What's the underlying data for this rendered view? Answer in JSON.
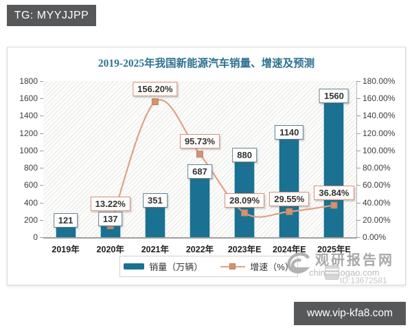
{
  "top_banner": {
    "text": "TG: MYYJJPP"
  },
  "bottom_banner": {
    "text": "www.vip-kfa8.com"
  },
  "watermark": {
    "site_name": "观研报告网",
    "site_url": "chinabaogao.com",
    "doc_id": "ID:13672581"
  },
  "chart_data": {
    "type": "bar",
    "combo": "bar+line",
    "title": "2019-2025年我国新能源汽车销量、增速及预测",
    "categories": [
      "2019年",
      "2020年",
      "2021年",
      "2022年",
      "2023年E",
      "2024年E",
      "2025年E"
    ],
    "series": [
      {
        "name": "销量（万辆）",
        "type": "bar",
        "axis": "left",
        "color": "#1b7191",
        "values": [
          121,
          137,
          351,
          687,
          880,
          1140,
          1560
        ],
        "data_labels": [
          "121",
          "137",
          "351",
          "687",
          "880",
          "1140",
          "1560"
        ]
      },
      {
        "name": "增速（%）",
        "type": "line",
        "axis": "right",
        "color": "#dfa183",
        "marker_color": "#d9906b",
        "values": [
          null,
          13.22,
          156.2,
          95.73,
          28.09,
          29.55,
          36.84
        ],
        "data_labels": [
          null,
          "13.22%",
          "156.20%",
          "95.73%",
          "28.09%",
          "29.55%",
          "36.84%"
        ]
      }
    ],
    "left_axis": {
      "min": 0,
      "max": 1800,
      "step": 200,
      "tick_labels": [
        "0",
        "200",
        "400",
        "600",
        "800",
        "1000",
        "1200",
        "1400",
        "1600",
        "1800"
      ]
    },
    "right_axis": {
      "min": 0,
      "max": 180,
      "step": 20,
      "tick_labels": [
        "0.00%",
        "20.00%",
        "40.00%",
        "60.00%",
        "80.00%",
        "100.00%",
        "120.00%",
        "140.00%",
        "160.00%",
        "180.00%"
      ]
    },
    "legend": {
      "position": "bottom",
      "items": [
        "销量（万辆）",
        "增速（%）"
      ]
    },
    "grid": false,
    "plot_background": "diagonal-hatch"
  }
}
